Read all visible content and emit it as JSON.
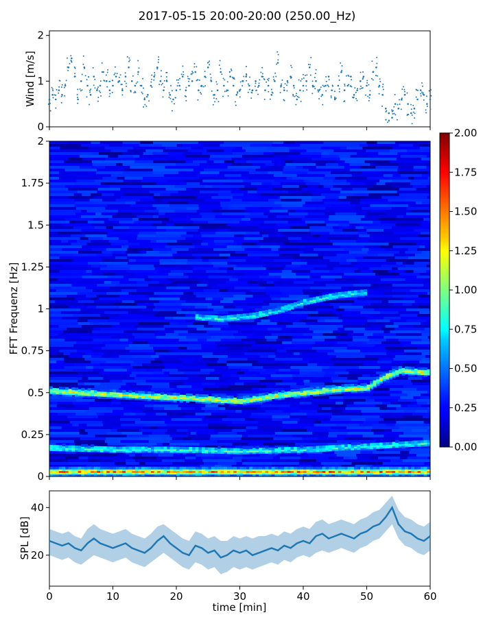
{
  "title": "2017-05-15 20:00-20:00 (250.00_Hz)",
  "chart_data": [
    {
      "type": "scatter",
      "name": "wind",
      "ylabel": "Wind [m/s]",
      "ylim": [
        0,
        2.1
      ],
      "xlim": [
        0,
        60
      ],
      "yticks": [
        "0",
        "1",
        "2"
      ],
      "ytick_values": [
        0,
        1,
        2
      ],
      "color": "#1f77b4",
      "x": [
        0,
        0.5,
        1,
        1.5,
        2,
        2.5,
        3,
        3.5,
        4,
        4.5,
        5,
        5.5,
        6,
        6.5,
        7,
        7.5,
        8,
        8.5,
        9,
        9.5,
        10,
        10.5,
        11,
        11.5,
        12,
        12.5,
        13,
        13.5,
        14,
        14.5,
        15,
        15.5,
        16,
        16.5,
        17,
        17.5,
        18,
        18.5,
        19,
        19.5,
        20,
        20.5,
        21,
        21.5,
        22,
        22.5,
        23,
        23.5,
        24,
        24.5,
        25,
        25.5,
        26,
        26.5,
        27,
        27.5,
        28,
        28.5,
        29,
        29.5,
        30,
        30.5,
        31,
        31.5,
        32,
        32.5,
        33,
        33.5,
        34,
        34.5,
        35,
        35.5,
        36,
        36.5,
        37,
        37.5,
        38,
        38.5,
        39,
        39.5,
        40,
        40.5,
        41,
        41.5,
        42,
        42.5,
        43,
        43.5,
        44,
        44.5,
        45,
        45.5,
        46,
        46.5,
        47,
        47.5,
        48,
        48.5,
        49,
        49.5,
        50,
        50.5,
        51,
        51.5,
        52,
        52.5,
        53,
        53.5,
        54,
        54.5,
        55,
        55.5,
        56,
        56.5,
        57,
        57.5,
        58,
        58.5,
        59,
        59.5,
        60
      ],
      "y": [
        0.6,
        0.7,
        0.6,
        0.8,
        0.7,
        0.9,
        1.3,
        1.5,
        1.1,
        0.6,
        1.0,
        1.3,
        0.9,
        0.7,
        1.1,
        0.8,
        0.9,
        1.2,
        1.0,
        0.8,
        0.9,
        1.1,
        1.0,
        0.8,
        1.1,
        1.3,
        1.0,
        0.9,
        1.2,
        0.9,
        0.6,
        0.7,
        0.9,
        1.1,
        1.3,
        1.0,
        0.8,
        1.0,
        0.7,
        0.6,
        0.8,
        0.9,
        1.1,
        0.8,
        0.9,
        1.0,
        1.2,
        0.8,
        0.9,
        1.1,
        1.3,
        1.0,
        0.7,
        0.8,
        1.2,
        0.9,
        0.8,
        1.1,
        0.9,
        0.7,
        0.8,
        1.0,
        1.1,
        0.9,
        0.8,
        1.0,
        0.9,
        1.1,
        0.8,
        0.9,
        0.7,
        1.0,
        1.4,
        0.9,
        0.8,
        1.0,
        1.1,
        0.9,
        0.6,
        0.8,
        0.9,
        1.0,
        1.3,
        0.9,
        1.0,
        0.8,
        0.7,
        0.9,
        1.1,
        0.8,
        0.6,
        0.9,
        1.2,
        0.8,
        0.9,
        1.1,
        0.7,
        0.8,
        1.0,
        1.1,
        0.9,
        0.7,
        1.2,
        1.3,
        0.9,
        0.7,
        0.4,
        0.3,
        0.2,
        0.5,
        0.4,
        0.6,
        0.7,
        0.5,
        0.3,
        0.4,
        0.6,
        0.8,
        0.7,
        0.5,
        0.6
      ]
    },
    {
      "type": "heatmap",
      "name": "spectrogram",
      "ylabel": "FFT Frequenz [Hz]",
      "ylim": [
        0,
        2
      ],
      "xlim": [
        0,
        60
      ],
      "yticks": [
        "0",
        "0.25",
        "0.5",
        "0.75",
        "1",
        "1.25",
        "1.5",
        "1.75",
        "2"
      ],
      "ytick_values": [
        0,
        0.25,
        0.5,
        0.75,
        1,
        1.25,
        1.5,
        1.75,
        2
      ],
      "colormap": "jet",
      "colorbar": {
        "range": [
          0,
          2
        ],
        "ticks": [
          "0.00",
          "0.25",
          "0.50",
          "0.75",
          "1.00",
          "1.25",
          "1.50",
          "1.75",
          "2.00"
        ],
        "tick_values": [
          0,
          0.25,
          0.5,
          0.75,
          1,
          1.25,
          1.5,
          1.75,
          2
        ]
      },
      "features": [
        {
          "kind": "band",
          "x": [
            0,
            10,
            20,
            25,
            30,
            35,
            40,
            45,
            50,
            52,
            55,
            60
          ],
          "freq": [
            0.51,
            0.49,
            0.47,
            0.46,
            0.45,
            0.48,
            0.5,
            0.52,
            0.53,
            0.58,
            0.63,
            0.62
          ],
          "intensity": 1.1
        },
        {
          "kind": "band",
          "x": [
            0,
            10,
            20,
            30,
            40,
            50,
            60
          ],
          "freq": [
            0.17,
            0.16,
            0.16,
            0.15,
            0.16,
            0.18,
            0.2
          ],
          "intensity": 0.8
        },
        {
          "kind": "band",
          "x": [
            23,
            27,
            32,
            36,
            40,
            45,
            50
          ],
          "freq": [
            0.95,
            0.94,
            0.96,
            0.99,
            1.04,
            1.08,
            1.1
          ],
          "intensity": 0.75
        },
        {
          "kind": "band",
          "x": [
            0,
            60
          ],
          "freq": [
            0.03,
            0.03
          ],
          "intensity": 1.4
        }
      ]
    },
    {
      "type": "area",
      "name": "spl",
      "ylabel": "SPL [dB]",
      "xlabel": "time [min]",
      "ylim": [
        7,
        47
      ],
      "xlim": [
        0,
        60
      ],
      "yticks": [
        "20",
        "40"
      ],
      "ytick_values": [
        20,
        40
      ],
      "xticks": [
        "0",
        "10",
        "20",
        "30",
        "40",
        "50",
        "60"
      ],
      "xtick_values": [
        0,
        10,
        20,
        30,
        40,
        50,
        60
      ],
      "color": "#1f77b4",
      "x": [
        0,
        1,
        2,
        3,
        4,
        5,
        6,
        7,
        8,
        9,
        10,
        11,
        12,
        13,
        14,
        15,
        16,
        17,
        18,
        19,
        20,
        21,
        22,
        23,
        24,
        25,
        26,
        27,
        28,
        29,
        30,
        31,
        32,
        33,
        34,
        35,
        36,
        37,
        38,
        39,
        40,
        41,
        42,
        43,
        44,
        45,
        46,
        47,
        48,
        49,
        50,
        51,
        52,
        53,
        54,
        55,
        56,
        57,
        58,
        59,
        60
      ],
      "y": [
        26,
        25,
        24,
        25,
        23,
        22,
        25,
        27,
        25,
        24,
        23,
        24,
        25,
        23,
        22,
        21,
        23,
        26,
        28,
        25,
        23,
        21,
        20,
        24,
        23,
        21,
        22,
        19,
        20,
        22,
        21,
        22,
        20,
        21,
        22,
        23,
        22,
        24,
        23,
        25,
        26,
        25,
        28,
        29,
        27,
        28,
        29,
        28,
        27,
        29,
        30,
        32,
        33,
        36,
        40,
        33,
        30,
        29,
        27,
        26,
        28
      ],
      "band_low": [
        20,
        19,
        18,
        19,
        17,
        16,
        18,
        20,
        19,
        18,
        17,
        18,
        19,
        17,
        16,
        15,
        17,
        19,
        21,
        19,
        17,
        15,
        14,
        17,
        16,
        14,
        15,
        12,
        13,
        15,
        14,
        15,
        14,
        15,
        16,
        17,
        16,
        18,
        17,
        19,
        20,
        19,
        21,
        22,
        21,
        22,
        23,
        22,
        21,
        23,
        24,
        26,
        27,
        30,
        33,
        27,
        24,
        23,
        21,
        20,
        22
      ],
      "band_high": [
        31,
        30,
        29,
        30,
        28,
        27,
        31,
        33,
        31,
        30,
        29,
        30,
        31,
        29,
        28,
        27,
        29,
        32,
        33,
        31,
        29,
        27,
        26,
        30,
        29,
        27,
        28,
        26,
        26,
        28,
        27,
        28,
        27,
        28,
        28,
        29,
        28,
        30,
        29,
        31,
        32,
        31,
        34,
        35,
        33,
        34,
        35,
        34,
        33,
        35,
        36,
        38,
        39,
        42,
        45,
        39,
        36,
        35,
        33,
        32,
        34
      ]
    }
  ]
}
